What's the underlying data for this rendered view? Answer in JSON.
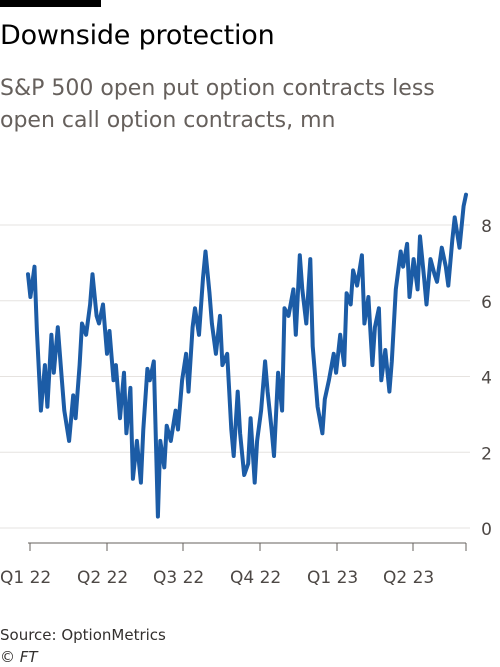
{
  "chart_data": {
    "type": "line",
    "title": "Downside protection",
    "subtitle": "S&P 500 open put option contracts less open call option contracts, mn",
    "xlabel": "",
    "ylabel": "",
    "ylim": [
      0,
      9
    ],
    "yticks": [
      0,
      2,
      4,
      6,
      8
    ],
    "xticks": [
      "Q1 22",
      "Q2 22",
      "Q3 22",
      "Q4 22",
      "Q1 23",
      "Q2 23"
    ],
    "grid": true,
    "line_color": "#1c5ca6",
    "series": [
      {
        "name": "",
        "x": [
          "2022-01-03",
          "2022-01-06",
          "2022-01-11",
          "2022-01-14",
          "2022-01-19",
          "2022-01-24",
          "2022-01-27",
          "2022-02-01",
          "2022-02-04",
          "2022-02-09",
          "2022-02-14",
          "2022-02-17",
          "2022-02-23",
          "2022-02-28",
          "2022-03-03",
          "2022-03-08",
          "2022-03-11",
          "2022-03-16",
          "2022-03-21",
          "2022-03-24",
          "2022-03-29",
          "2022-04-01",
          "2022-04-06",
          "2022-04-11",
          "2022-04-14",
          "2022-04-19",
          "2022-04-22",
          "2022-04-27",
          "2022-05-02",
          "2022-05-05",
          "2022-05-10",
          "2022-05-13",
          "2022-05-18",
          "2022-05-23",
          "2022-05-26",
          "2022-05-31",
          "2022-06-03",
          "2022-06-08",
          "2022-06-13",
          "2022-06-16",
          "2022-06-21",
          "2022-06-24",
          "2022-06-29",
          "2022-07-05",
          "2022-07-08",
          "2022-07-13",
          "2022-07-18",
          "2022-07-21",
          "2022-07-26",
          "2022-07-29",
          "2022-08-03",
          "2022-08-08",
          "2022-08-11",
          "2022-08-16",
          "2022-08-19",
          "2022-08-24",
          "2022-08-29",
          "2022-09-01",
          "2022-09-07",
          "2022-09-12",
          "2022-09-15",
          "2022-09-20",
          "2022-09-23",
          "2022-09-28",
          "2022-10-03",
          "2022-10-06",
          "2022-10-11",
          "2022-10-14",
          "2022-10-19",
          "2022-10-24",
          "2022-10-27",
          "2022-11-01",
          "2022-11-04",
          "2022-11-09",
          "2022-11-14",
          "2022-11-17",
          "2022-11-22",
          "2022-11-28",
          "2022-12-01",
          "2022-12-06",
          "2022-12-09",
          "2022-12-14",
          "2022-12-19",
          "2022-12-22",
          "2022-12-28",
          "2023-01-03",
          "2023-01-06",
          "2023-01-11",
          "2023-01-17",
          "2023-01-20",
          "2023-01-25",
          "2023-01-30",
          "2023-02-02",
          "2023-02-07",
          "2023-02-10",
          "2023-02-15",
          "2023-02-21",
          "2023-02-24",
          "2023-03-01",
          "2023-03-06",
          "2023-03-09",
          "2023-03-14",
          "2023-03-17",
          "2023-03-22",
          "2023-03-27",
          "2023-03-30",
          "2023-04-04",
          "2023-04-10",
          "2023-04-13",
          "2023-04-18",
          "2023-04-21",
          "2023-04-26",
          "2023-05-01",
          "2023-05-04",
          "2023-05-09",
          "2023-05-12",
          "2023-05-17",
          "2023-05-22",
          "2023-05-25",
          "2023-05-31",
          "2023-06-05",
          "2023-06-08",
          "2023-06-13",
          "2023-06-16",
          "2023-06-22",
          "2023-06-27",
          "2023-06-30"
        ],
        "values": [
          6.7,
          6.1,
          6.9,
          5.2,
          3.1,
          4.3,
          3.2,
          5.1,
          4.1,
          5.3,
          3.9,
          3.1,
          2.3,
          3.5,
          2.9,
          4.3,
          5.4,
          5.1,
          5.9,
          6.7,
          5.6,
          5.4,
          5.9,
          4.6,
          5.2,
          3.9,
          4.3,
          2.9,
          4.1,
          2.5,
          3.7,
          1.3,
          2.3,
          1.2,
          2.6,
          4.2,
          3.9,
          4.4,
          0.3,
          2.3,
          1.6,
          2.7,
          2.3,
          3.1,
          2.6,
          3.9,
          4.6,
          3.6,
          5.3,
          5.8,
          5.1,
          6.6,
          7.3,
          6.2,
          5.4,
          4.6,
          5.6,
          4.3,
          4.6,
          2.6,
          1.9,
          3.6,
          2.5,
          1.4,
          1.7,
          2.9,
          1.2,
          2.3,
          3.1,
          4.4,
          3.6,
          2.6,
          1.9,
          4.1,
          3.1,
          5.8,
          5.6,
          6.3,
          5.1,
          7.2,
          6.3,
          5.4,
          7.1,
          4.8,
          3.2,
          2.5,
          3.4,
          3.9,
          4.6,
          4.1,
          5.1,
          4.3,
          6.2,
          5.9,
          6.8,
          6.4,
          7.2,
          5.4,
          6.1,
          4.3,
          5.3,
          5.8,
          3.9,
          4.7,
          3.6,
          4.4,
          6.3,
          7.3,
          6.9,
          7.5,
          6.1,
          7.1,
          6.3,
          7.7,
          6.6,
          5.9,
          7.1,
          6.7,
          6.5,
          7.4,
          6.9,
          6.4,
          7.6,
          8.2,
          7.4,
          8.5,
          8.8
        ]
      }
    ]
  },
  "footer": {
    "source": "Source: OptionMetrics",
    "credit": "© FT"
  }
}
